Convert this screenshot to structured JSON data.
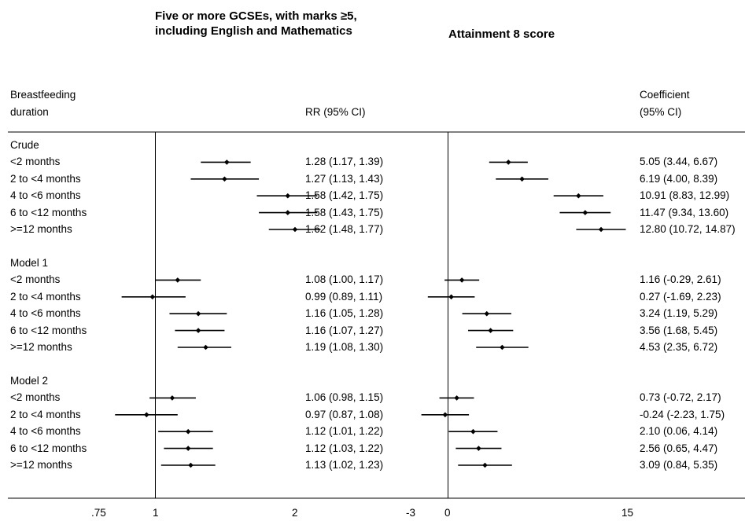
{
  "chart_data": [
    {
      "type": "forest",
      "title": "Five or more GCSEs, with marks ≥5, including English and Mathematics",
      "header_left": [
        "Breastfeeding",
        "duration"
      ],
      "header_estimate": "RR (95% CI)",
      "reference_line": 1,
      "x_ticks": [
        ".75",
        "1",
        "2"
      ],
      "x_scale": "log",
      "groups": [
        {
          "name": "Crude",
          "rows": [
            {
              "label": "<2 months",
              "est": 1.28,
              "lo": 1.17,
              "hi": 1.39,
              "text": "1.28 (1.17, 1.39)"
            },
            {
              "label": "2 to <4 months",
              "est": 1.27,
              "lo": 1.13,
              "hi": 1.43,
              "text": "1.27 (1.13, 1.43)"
            },
            {
              "label": "4 to <6 months",
              "est": 1.58,
              "lo": 1.42,
              "hi": 1.75,
              "text": "1.58 (1.42, 1.75)"
            },
            {
              "label": "6 to <12 months",
              "est": 1.58,
              "lo": 1.43,
              "hi": 1.75,
              "text": "1.58 (1.43, 1.75)"
            },
            {
              "label": ">=12 months",
              "est": 1.62,
              "lo": 1.48,
              "hi": 1.77,
              "text": "1.62 (1.48, 1.77)"
            }
          ]
        },
        {
          "name": "Model 1",
          "rows": [
            {
              "label": "<2 months",
              "est": 1.08,
              "lo": 1.0,
              "hi": 1.17,
              "text": "1.08 (1.00, 1.17)"
            },
            {
              "label": "2 to <4 months",
              "est": 0.99,
              "lo": 0.89,
              "hi": 1.11,
              "text": "0.99 (0.89, 1.11)"
            },
            {
              "label": "4 to <6 months",
              "est": 1.16,
              "lo": 1.05,
              "hi": 1.28,
              "text": "1.16 (1.05, 1.28)"
            },
            {
              "label": "6 to <12 months",
              "est": 1.16,
              "lo": 1.07,
              "hi": 1.27,
              "text": "1.16 (1.07, 1.27)"
            },
            {
              "label": ">=12 months",
              "est": 1.19,
              "lo": 1.08,
              "hi": 1.3,
              "text": "1.19 (1.08, 1.30)"
            }
          ]
        },
        {
          "name": "Model 2",
          "rows": [
            {
              "label": "<2 months",
              "est": 1.06,
              "lo": 0.98,
              "hi": 1.15,
              "text": "1.06 (0.98, 1.15)"
            },
            {
              "label": "2 to <4 months",
              "est": 0.97,
              "lo": 0.87,
              "hi": 1.08,
              "text": "0.97 (0.87, 1.08)"
            },
            {
              "label": "4 to <6 months",
              "est": 1.12,
              "lo": 1.01,
              "hi": 1.22,
              "text": "1.12 (1.01, 1.22)"
            },
            {
              "label": "6 to <12 months",
              "est": 1.12,
              "lo": 1.03,
              "hi": 1.22,
              "text": "1.12 (1.03, 1.22)"
            },
            {
              "label": ">=12 months",
              "est": 1.13,
              "lo": 1.02,
              "hi": 1.23,
              "text": "1.13 (1.02, 1.23)"
            }
          ]
        }
      ]
    },
    {
      "type": "forest",
      "title": "Attainment 8 score",
      "header_estimate": [
        "Coefficient",
        "(95% CI)"
      ],
      "reference_line": 0,
      "x_ticks": [
        "-3",
        "0",
        "15"
      ],
      "x_scale": "linear",
      "groups": [
        {
          "name": "Crude",
          "rows": [
            {
              "label": "<2 months",
              "est": 5.05,
              "lo": 3.44,
              "hi": 6.67,
              "text": "5.05 (3.44, 6.67)"
            },
            {
              "label": "2 to <4 months",
              "est": 6.19,
              "lo": 4.0,
              "hi": 8.39,
              "text": "6.19 (4.00, 8.39)"
            },
            {
              "label": "4 to <6 months",
              "est": 10.91,
              "lo": 8.83,
              "hi": 12.99,
              "text": "10.91 (8.83, 12.99)"
            },
            {
              "label": "6 to <12 months",
              "est": 11.47,
              "lo": 9.34,
              "hi": 13.6,
              "text": "11.47 (9.34, 13.60)"
            },
            {
              "label": ">=12 months",
              "est": 12.8,
              "lo": 10.72,
              "hi": 14.87,
              "text": "12.80 (10.72, 14.87)"
            }
          ]
        },
        {
          "name": "Model 1",
          "rows": [
            {
              "label": "<2 months",
              "est": 1.16,
              "lo": -0.29,
              "hi": 2.61,
              "text": "1.16 (-0.29, 2.61)"
            },
            {
              "label": "2 to <4 months",
              "est": 0.27,
              "lo": -1.69,
              "hi": 2.23,
              "text": "0.27 (-1.69, 2.23)"
            },
            {
              "label": "4 to <6 months",
              "est": 3.24,
              "lo": 1.19,
              "hi": 5.29,
              "text": "3.24 (1.19, 5.29)"
            },
            {
              "label": "6 to <12 months",
              "est": 3.56,
              "lo": 1.68,
              "hi": 5.45,
              "text": "3.56 (1.68, 5.45)"
            },
            {
              "label": ">=12 months",
              "est": 4.53,
              "lo": 2.35,
              "hi": 6.72,
              "text": "4.53 (2.35, 6.72)"
            }
          ]
        },
        {
          "name": "Model 2",
          "rows": [
            {
              "label": "<2 months",
              "est": 0.73,
              "lo": -0.72,
              "hi": 2.17,
              "text": "0.73 (-0.72, 2.17)"
            },
            {
              "label": "2 to <4 months",
              "est": -0.24,
              "lo": -2.23,
              "hi": 1.75,
              "text": "-0.24 (-2.23, 1.75)"
            },
            {
              "label": "4 to <6 months",
              "est": 2.1,
              "lo": 0.06,
              "hi": 4.14,
              "text": "2.10 (0.06, 4.14)"
            },
            {
              "label": "6 to <12 months",
              "est": 2.56,
              "lo": 0.65,
              "hi": 4.47,
              "text": "2.56 (0.65, 4.47)"
            },
            {
              "label": ">=12 months",
              "est": 3.09,
              "lo": 0.84,
              "hi": 5.35,
              "text": "3.09 (0.84, 5.35)"
            }
          ]
        }
      ]
    }
  ]
}
